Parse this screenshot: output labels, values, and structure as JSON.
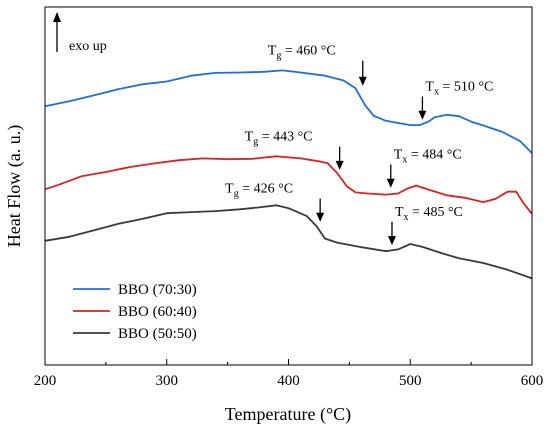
{
  "chart_data": {
    "type": "line",
    "title": "",
    "xlabel": "Temperature (°C)",
    "ylabel": "Heat Flow (a. u.)",
    "xlim": [
      200,
      600
    ],
    "x_ticks": [
      200,
      300,
      400,
      500,
      600
    ],
    "y_ticks": [],
    "ylim": [
      0,
      100
    ],
    "grid": false,
    "legend_position": "bottom-left",
    "exo_label": "exo up",
    "series": [
      {
        "name": "BBO (70:30)",
        "color": "#1f6fd8",
        "points": [
          [
            200,
            72.3
          ],
          [
            220,
            73.7
          ],
          [
            240,
            75.3
          ],
          [
            260,
            77.0
          ],
          [
            280,
            78.4
          ],
          [
            300,
            79.2
          ],
          [
            320,
            80.8
          ],
          [
            340,
            81.6
          ],
          [
            360,
            81.7
          ],
          [
            380,
            81.9
          ],
          [
            395,
            82.3
          ],
          [
            410,
            81.7
          ],
          [
            430,
            80.8
          ],
          [
            445,
            79.5
          ],
          [
            455,
            77.3
          ],
          [
            463,
            72.5
          ],
          [
            470,
            69.6
          ],
          [
            480,
            68.2
          ],
          [
            490,
            67.6
          ],
          [
            500,
            67.0
          ],
          [
            508,
            67.0
          ],
          [
            515,
            68.0
          ],
          [
            520,
            69.2
          ],
          [
            530,
            69.9
          ],
          [
            540,
            69.5
          ],
          [
            550,
            68.0
          ],
          [
            560,
            66.9
          ],
          [
            575,
            65.2
          ],
          [
            590,
            62.6
          ],
          [
            600,
            59.2
          ]
        ]
      },
      {
        "name": "BBO (60:40)",
        "color": "#e02020",
        "points": [
          [
            200,
            49.1
          ],
          [
            210,
            50.2
          ],
          [
            230,
            52.7
          ],
          [
            250,
            53.9
          ],
          [
            270,
            55.3
          ],
          [
            290,
            56.3
          ],
          [
            310,
            57.2
          ],
          [
            330,
            57.7
          ],
          [
            350,
            57.5
          ],
          [
            370,
            57.6
          ],
          [
            390,
            58.3
          ],
          [
            410,
            57.7
          ],
          [
            425,
            56.9
          ],
          [
            432,
            56.4
          ],
          [
            440,
            53.6
          ],
          [
            448,
            49.9
          ],
          [
            455,
            48.2
          ],
          [
            465,
            47.9
          ],
          [
            480,
            47.6
          ],
          [
            490,
            47.9
          ],
          [
            497,
            49.2
          ],
          [
            505,
            50.1
          ],
          [
            515,
            49.0
          ],
          [
            530,
            47.4
          ],
          [
            545,
            46.7
          ],
          [
            560,
            45.5
          ],
          [
            570,
            46.4
          ],
          [
            580,
            48.4
          ],
          [
            587,
            48.4
          ],
          [
            593,
            45.2
          ],
          [
            600,
            42.2
          ]
        ]
      },
      {
        "name": "BBO (50:50)",
        "color": "#3a3a3a",
        "points": [
          [
            200,
            34.7
          ],
          [
            220,
            35.8
          ],
          [
            240,
            37.6
          ],
          [
            260,
            39.4
          ],
          [
            280,
            40.8
          ],
          [
            300,
            42.4
          ],
          [
            320,
            42.7
          ],
          [
            340,
            43.0
          ],
          [
            360,
            43.5
          ],
          [
            375,
            44.0
          ],
          [
            390,
            44.6
          ],
          [
            400,
            43.8
          ],
          [
            415,
            41.6
          ],
          [
            423,
            38.8
          ],
          [
            430,
            35.3
          ],
          [
            440,
            34.2
          ],
          [
            460,
            32.9
          ],
          [
            480,
            31.8
          ],
          [
            490,
            32.3
          ],
          [
            500,
            33.8
          ],
          [
            510,
            33.0
          ],
          [
            525,
            31.3
          ],
          [
            540,
            29.8
          ],
          [
            560,
            28.5
          ],
          [
            580,
            26.6
          ],
          [
            600,
            24.2
          ]
        ]
      }
    ],
    "annotations": [
      {
        "prefix": "T",
        "sub": "g",
        "text": " = 460 °C",
        "series": "BBO (70:30)",
        "arrow_x": 461,
        "arrow_y_top": 85,
        "arrow_y_tip": 78
      },
      {
        "prefix": "T",
        "sub": "x",
        "text": " = 510 °C",
        "series": "BBO (70:30)",
        "arrow_x": 510,
        "arrow_y_top": 75,
        "arrow_y_tip": 68.5
      },
      {
        "prefix": "T",
        "sub": "g",
        "text": " = 443 °C",
        "series": "BBO (60:40)",
        "arrow_x": 442,
        "arrow_y_top": 61,
        "arrow_y_tip": 54.5
      },
      {
        "prefix": "T",
        "sub": "x",
        "text": " = 484 °C",
        "series": "BBO (60:40)",
        "arrow_x": 484,
        "arrow_y_top": 56,
        "arrow_y_tip": 49.5
      },
      {
        "prefix": "T",
        "sub": "g",
        "text": " = 426 °C",
        "series": "BBO (50:50)",
        "arrow_x": 426,
        "arrow_y_top": 46.5,
        "arrow_y_tip": 40
      },
      {
        "prefix": "T",
        "sub": "x",
        "text": " = 485 °C",
        "series": "BBO (50:50)",
        "arrow_x": 485,
        "arrow_y_top": 40,
        "arrow_y_tip": 33.5
      }
    ]
  }
}
